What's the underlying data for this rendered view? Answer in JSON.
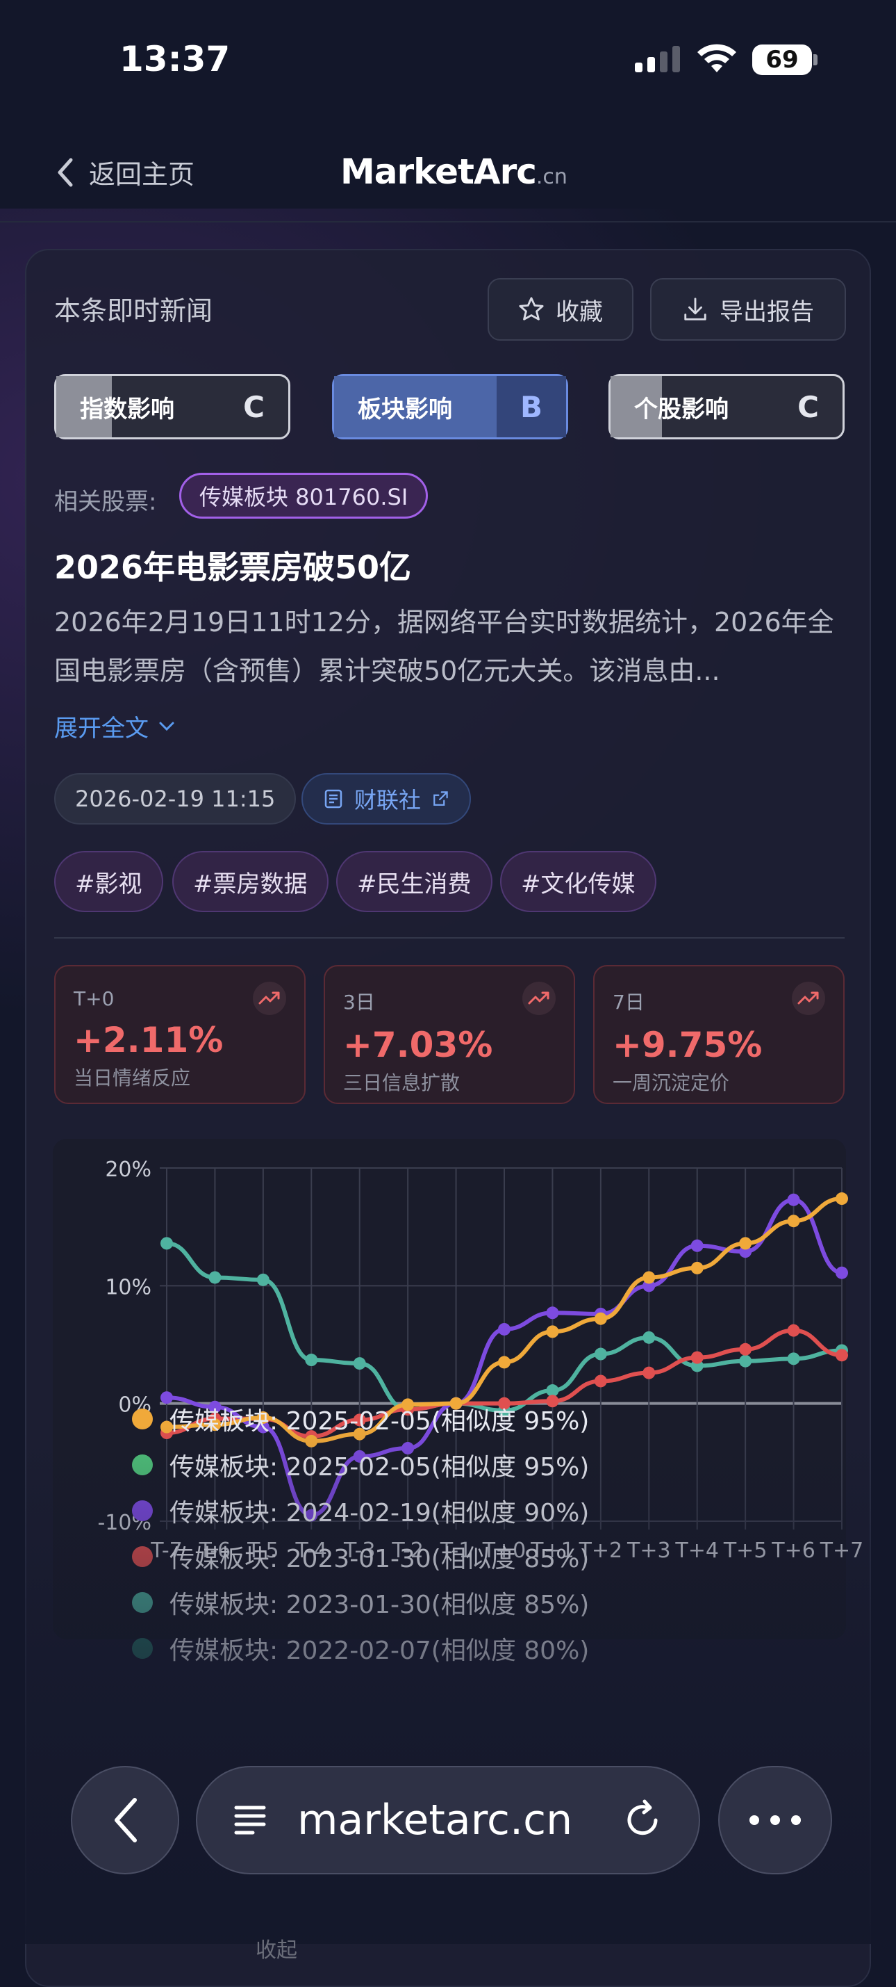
{
  "status": {
    "time": "13:37",
    "battery": "69"
  },
  "nav": {
    "back_label": "返回主页",
    "brand": "MarketArc",
    "brand_suffix": ".cn"
  },
  "card": {
    "title": "本条即时新闻",
    "favorite_label": "收藏",
    "export_label": "导出报告",
    "impacts": [
      {
        "label": "指数影响",
        "grade": "C",
        "active": false
      },
      {
        "label": "板块影响",
        "grade": "B",
        "active": true
      },
      {
        "label": "个股影响",
        "grade": "C",
        "active": false
      }
    ],
    "related_label": "相关股票:",
    "related_stock": "传媒板块 801760.SI",
    "headline": "2026年电影票房破50亿",
    "body": "2026年2月19日11时12分，据网络平台实时数据统计，2026年全国电影票房（含预售）累计突破50亿元大关。该消息由...",
    "expand_label": "展开全文",
    "datetime": "2026-02-19 11:15",
    "source": "财联社",
    "tags": [
      "#影视",
      "#票房数据",
      "#民生消费",
      "#文化传媒"
    ],
    "returns": [
      {
        "period": "T+0",
        "value": "+2.11%",
        "desc": "当日情绪反应"
      },
      {
        "period": "3日",
        "value": "+7.03%",
        "desc": "三日信息扩散"
      },
      {
        "period": "7日",
        "value": "+9.75%",
        "desc": "一周沉淀定价"
      }
    ]
  },
  "chart_data": {
    "type": "line",
    "categories": [
      "T-7",
      "T-6",
      "T-5",
      "T-4",
      "T-3",
      "T-2",
      "T-1",
      "T+0",
      "T+1",
      "T+2",
      "T+3",
      "T+4",
      "T+5",
      "T+6",
      "T+7"
    ],
    "ylim": [
      -10,
      20
    ],
    "yticks": [
      -10,
      0,
      10,
      20
    ],
    "ytick_labels": [
      "-10%",
      "0%",
      "10%",
      "20%"
    ],
    "grid": true,
    "series": [
      {
        "name": "传媒板块: 2025-02-05(相似度 95%)",
        "color": "#f0a93a",
        "values": [
          -2.0,
          -1.8,
          -1.2,
          -3.2,
          -2.6,
          -0.1,
          0.0,
          3.5,
          6.1,
          7.2,
          10.7,
          11.5,
          13.6,
          15.5,
          17.4
        ]
      },
      {
        "name": "传媒板块: 2025-02-05(相似度 95%)",
        "color": "#4fc07a",
        "values": [
          null,
          null,
          null,
          null,
          null,
          null,
          null,
          null,
          null,
          null,
          null,
          null,
          null,
          null,
          null
        ]
      },
      {
        "name": "传媒板块: 2024-02-19(相似度 90%)",
        "color": "#7d4be0",
        "values": [
          0.5,
          -0.3,
          -2.0,
          -9.5,
          -4.5,
          -3.8,
          0.0,
          6.3,
          7.7,
          7.6,
          10.0,
          13.4,
          12.9,
          17.3,
          11.1
        ]
      },
      {
        "name": "传媒板块: 2023-01-30(相似度 85%)",
        "color": "#e05050",
        "values": [
          -2.5,
          -1.3,
          -1.3,
          -2.8,
          -1.4,
          -0.5,
          0.0,
          0.0,
          0.2,
          1.9,
          2.6,
          3.9,
          4.6,
          6.2,
          4.1
        ]
      },
      {
        "name": "传媒板块: 2023-01-30(相似度 85%)",
        "color": "#4fb3a0",
        "values": [
          13.6,
          10.7,
          10.5,
          3.7,
          3.4,
          -0.5,
          0.0,
          -0.6,
          1.1,
          4.2,
          5.6,
          3.2,
          3.6,
          3.8,
          4.5
        ]
      },
      {
        "name": "传媒板块: 2022-02-07(相似度 80%)",
        "color": "#2a6e66",
        "values": [
          null,
          null,
          null,
          null,
          null,
          null,
          null,
          null,
          null,
          null,
          null,
          null,
          null,
          null,
          null
        ]
      }
    ]
  },
  "legend_visible": [
    {
      "label": "传媒板块: 2025-02-05(相似度 95%)",
      "color": "#f0a93a"
    },
    {
      "label": "传媒板块: 2025-02-05(相似度 95%)",
      "color": "#4fc07a"
    },
    {
      "label": "传媒板块: 2024-02-19(相似度 90%)",
      "color": "#7d4be0"
    },
    {
      "label": "传媒板块: 2023-01-30(相似度 85%)",
      "color": "#e05050"
    },
    {
      "label": "传媒板块: 2023-01-30(相似度 85%)",
      "color": "#4fb3a0"
    },
    {
      "label": "传媒板块: 2022-02-07(相似度 80%)",
      "color": "#2a6e66"
    }
  ],
  "collapse_label": "收起",
  "browser": {
    "url": "marketarc.cn"
  }
}
